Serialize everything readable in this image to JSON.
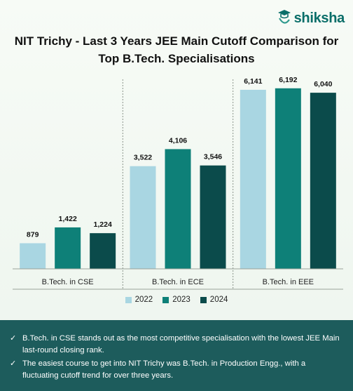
{
  "brand": {
    "name": "shiksha"
  },
  "title": "NIT Trichy - Last 3 Years JEE Main Cutoff Comparison for Top B.Tech. Specialisations",
  "chart_data": {
    "type": "bar",
    "categories": [
      "B.Tech. in CSE",
      "B.Tech. in ECE",
      "B.Tech. in EEE"
    ],
    "series": [
      {
        "name": "2022",
        "color": "#a9d6e2",
        "values": [
          879,
          3522,
          6141
        ],
        "labels": [
          "879",
          "3,522",
          "6,141"
        ]
      },
      {
        "name": "2023",
        "color": "#0e8078",
        "values": [
          1422,
          4106,
          6192
        ],
        "labels": [
          "1,422",
          "4,106",
          "6,192"
        ]
      },
      {
        "name": "2024",
        "color": "#0b4b4b",
        "values": [
          1224,
          3546,
          6040
        ],
        "labels": [
          "1,224",
          "3,546",
          "6,040"
        ]
      }
    ],
    "ylim": [
      0,
      6500
    ],
    "grid": false,
    "legend": "bottom"
  },
  "notes": [
    "B.Tech. in CSE stands out as the most competitive specialisation with the lowest JEE Main last-round closing rank.",
    "The easiest course to get into NIT Trichy was B.Tech. in Production Engg., with a fluctuating cutoff trend for over three years."
  ],
  "note_icon": "check-icon"
}
